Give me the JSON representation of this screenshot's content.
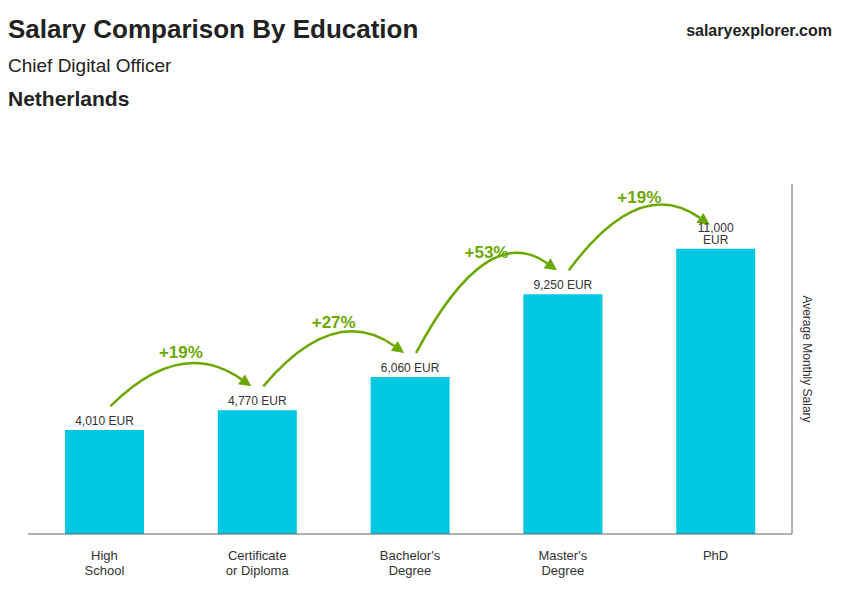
{
  "chart_data": {
    "type": "bar",
    "title": "Salary Comparison By Education",
    "subtitle": [
      "Chief Digital Officer",
      "Netherlands"
    ],
    "ylabel": "Average Monthly Salary",
    "categories": [
      "High\nSchool",
      "Certificate\nor Diploma",
      "Bachelor's\nDegree",
      "Master's\nDegree",
      "PhD"
    ],
    "values": [
      4010,
      4770,
      6060,
      9250,
      11000
    ],
    "value_labels": [
      "4,010 EUR",
      "4,770 EUR",
      "6,060 EUR",
      "9,250 EUR",
      "11,000 EUR"
    ],
    "data_labels": true,
    "color": "#00c8e0",
    "ylim": [
      0,
      13500
    ],
    "tick_labels": "x",
    "grid": false,
    "annotations": [
      {
        "text": "+19%",
        "from": "High\nSchool",
        "to": "Certificate\nor Diploma"
      },
      {
        "text": "+27%",
        "from": "Certificate\nor Diploma",
        "to": "Bachelor's\nDegree"
      },
      {
        "text": "+53%",
        "from": "Bachelor's\nDegree",
        "to": "Master's\nDegree"
      },
      {
        "text": "+19%",
        "from": "Master's\nDegree",
        "to": "PhD"
      },
      {
        "text": "salaryexplorer.com"
      }
    ]
  }
}
